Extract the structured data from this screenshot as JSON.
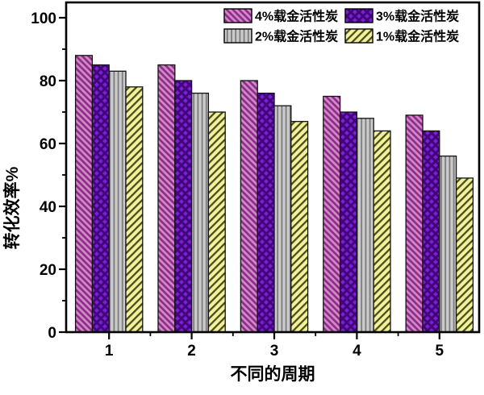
{
  "chart_data": {
    "type": "bar",
    "title": "",
    "xlabel": "不同的周期",
    "ylabel": "转化效率%",
    "categories": [
      "1",
      "2",
      "3",
      "4",
      "5"
    ],
    "series": [
      {
        "name": "4%载金活性炭",
        "pattern": "diagonal-down",
        "base_color": "#cf8ac6",
        "line_color": "#8e2b89",
        "values": [
          88,
          85,
          80,
          75,
          69
        ]
      },
      {
        "name": "3%载金活性炭",
        "pattern": "crosshatch",
        "base_color": "#7d1fd3",
        "line_color": "#42067c",
        "values": [
          85,
          80,
          76,
          70,
          64
        ]
      },
      {
        "name": "2%载金活性炭",
        "pattern": "vertical",
        "base_color": "#cbcbcb",
        "line_color": "#7e7e7e",
        "values": [
          83,
          76,
          72,
          68,
          56
        ]
      },
      {
        "name": "1%载金活性炭",
        "pattern": "diagonal-up",
        "base_color": "#f2f29c",
        "line_color": "#4c4c1d",
        "values": [
          78,
          70,
          67,
          64,
          49
        ]
      }
    ],
    "ylim": [
      0,
      100
    ],
    "yticks": [
      0,
      20,
      40,
      60,
      80,
      100
    ],
    "y_minor_step": 10,
    "legend_position": "top-right",
    "grid": false,
    "bar_outline_color": "#111111",
    "axis_color": "#000000"
  }
}
